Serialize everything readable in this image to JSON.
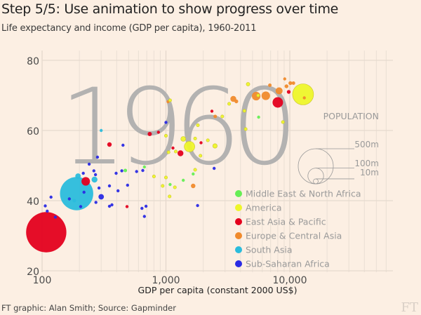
{
  "header": {
    "title": "Step 5/5: Use animation to show progress over time",
    "subtitle": "Life expectancy and income (GDP per capita), 1960-2011"
  },
  "footer": {
    "source": "FT graphic: Alan Smith; Source: Gapminder",
    "logo": "FT"
  },
  "chart_data": {
    "type": "scatter",
    "subtype": "bubble",
    "title": "Life expectancy and income (GDP per capita), 1960-2011",
    "year_label": "1960",
    "xlabel": "GDP per capita (constant 2000 US$)",
    "ylabel": "Life expectancy",
    "xscale": "log",
    "xlim": [
      100,
      60000
    ],
    "ylim": [
      20,
      83
    ],
    "xticks": [
      {
        "value": 100,
        "label": "100"
      },
      {
        "value": 1000,
        "label": "1,000"
      },
      {
        "value": 10000,
        "label": "10,000"
      }
    ],
    "yticks": [
      {
        "value": 20,
        "label": "20"
      },
      {
        "value": 40,
        "label": "40"
      },
      {
        "value": 60,
        "label": "60"
      },
      {
        "value": 80,
        "label": "80"
      }
    ],
    "grid": true,
    "legend_position": "bottom-right",
    "size_legend": {
      "title": "POPULATION",
      "entries": [
        {
          "label": "500m",
          "value": 500
        },
        {
          "label": "100m",
          "value": 100
        },
        {
          "label": "10m",
          "value": 10
        }
      ]
    },
    "regions": [
      {
        "key": "mena",
        "name": "Middle East & North Africa",
        "color": "#66ee55"
      },
      {
        "key": "america",
        "name": "America",
        "color": "#eef62a"
      },
      {
        "key": "eap",
        "name": "East Asia & Pacific",
        "color": "#e4001d"
      },
      {
        "key": "eca",
        "name": "Europe & Central Asia",
        "color": "#f08a2c"
      },
      {
        "key": "sa",
        "name": "South Asia",
        "color": "#2bbcdc"
      },
      {
        "key": "ssa",
        "name": "Sub-Saharan Africa",
        "color": "#2a2ae4"
      }
    ],
    "points": [
      {
        "region": "eap",
        "gdp": 108,
        "life": 31,
        "pop": 660
      },
      {
        "region": "sa",
        "gdp": 190,
        "life": 42,
        "pop": 450
      },
      {
        "region": "sa",
        "gdp": 195,
        "life": 47,
        "pop": 12
      },
      {
        "region": "sa",
        "gdp": 265,
        "life": 46,
        "pop": 14
      },
      {
        "region": "sa",
        "gdp": 182,
        "life": 40,
        "pop": 5
      },
      {
        "region": "sa",
        "gdp": 300,
        "life": 60,
        "pop": 4
      },
      {
        "region": "eap",
        "gdp": 225,
        "life": 45.5,
        "pop": 30
      },
      {
        "region": "eap",
        "gdp": 350,
        "life": 56,
        "pop": 8
      },
      {
        "region": "eap",
        "gdp": 740,
        "life": 59,
        "pop": 7
      },
      {
        "region": "eap",
        "gdp": 870,
        "life": 59.5,
        "pop": 4
      },
      {
        "region": "eap",
        "gdp": 1310,
        "life": 53.5,
        "pop": 14
      },
      {
        "region": "eap",
        "gdp": 1140,
        "life": 55,
        "pop": 1.5
      },
      {
        "region": "eap",
        "gdp": 1920,
        "life": 56.5,
        "pop": 0.8
      },
      {
        "region": "eap",
        "gdp": 2350,
        "life": 65.5,
        "pop": 1
      },
      {
        "region": "eap",
        "gdp": 485,
        "life": 38.3,
        "pop": 0.8
      },
      {
        "region": "eap",
        "gdp": 8000,
        "life": 68,
        "pop": 45
      },
      {
        "region": "eap",
        "gdp": 9800,
        "life": 71,
        "pop": 6
      },
      {
        "region": "ssa",
        "gdp": 110,
        "life": 37,
        "pop": 2
      },
      {
        "region": "ssa",
        "gdp": 106,
        "life": 38.5,
        "pop": 1.3
      },
      {
        "region": "ssa",
        "gdp": 128,
        "life": 35.3,
        "pop": 1.8
      },
      {
        "region": "ssa",
        "gdp": 118,
        "life": 41,
        "pop": 1.3
      },
      {
        "region": "ssa",
        "gdp": 166,
        "life": 40.5,
        "pop": 0.8
      },
      {
        "region": "ssa",
        "gdp": 205,
        "life": 38.3,
        "pop": 1.8
      },
      {
        "region": "ssa",
        "gdp": 215,
        "life": 47.8,
        "pop": 1.4
      },
      {
        "region": "ssa",
        "gdp": 218,
        "life": 42.4,
        "pop": 1.4
      },
      {
        "region": "ssa",
        "gdp": 240,
        "life": 50.4,
        "pop": 0.8
      },
      {
        "region": "ssa",
        "gdp": 262,
        "life": 48.5,
        "pop": 2
      },
      {
        "region": "ssa",
        "gdp": 280,
        "life": 52.4,
        "pop": 2.5
      },
      {
        "region": "ssa",
        "gdp": 270,
        "life": 47.4,
        "pop": 2.4
      },
      {
        "region": "ssa",
        "gdp": 288,
        "life": 43.6,
        "pop": 3
      },
      {
        "region": "ssa",
        "gdp": 300,
        "life": 41.1,
        "pop": 12
      },
      {
        "region": "ssa",
        "gdp": 272,
        "life": 39.5,
        "pop": 1.4
      },
      {
        "region": "ssa",
        "gdp": 350,
        "life": 38.4,
        "pop": 1.6
      },
      {
        "region": "ssa",
        "gdp": 350,
        "life": 44.2,
        "pop": 2.4
      },
      {
        "region": "ssa",
        "gdp": 366,
        "life": 38.8,
        "pop": 1.4
      },
      {
        "region": "ssa",
        "gdp": 396,
        "life": 47.8,
        "pop": 1.3
      },
      {
        "region": "ssa",
        "gdp": 410,
        "life": 42.8,
        "pop": 1.6
      },
      {
        "region": "ssa",
        "gdp": 440,
        "life": 48.5,
        "pop": 1.6
      },
      {
        "region": "ssa",
        "gdp": 490,
        "life": 44.4,
        "pop": 1.8
      },
      {
        "region": "ssa",
        "gdp": 580,
        "life": 48.3,
        "pop": 1.6
      },
      {
        "region": "ssa",
        "gdp": 650,
        "life": 48.6,
        "pop": 1.2
      },
      {
        "region": "ssa",
        "gdp": 450,
        "life": 55.8,
        "pop": 1.6
      },
      {
        "region": "ssa",
        "gdp": 640,
        "life": 37.8,
        "pop": 1.4
      },
      {
        "region": "ssa",
        "gdp": 690,
        "life": 38.4,
        "pop": 1.4
      },
      {
        "region": "ssa",
        "gdp": 670,
        "life": 35.5,
        "pop": 0.9
      },
      {
        "region": "ssa",
        "gdp": 1000,
        "life": 62.3,
        "pop": 0.6
      },
      {
        "region": "ssa",
        "gdp": 1800,
        "life": 38.6,
        "pop": 0.6
      },
      {
        "region": "ssa",
        "gdp": 2450,
        "life": 49.2,
        "pop": 4
      },
      {
        "region": "mena",
        "gdp": 470,
        "life": 48.6,
        "pop": 5
      },
      {
        "region": "mena",
        "gdp": 670,
        "life": 49.6,
        "pop": 3.6
      },
      {
        "region": "mena",
        "gdp": 1380,
        "life": 45.8,
        "pop": 3.6
      },
      {
        "region": "mena",
        "gdp": 1660,
        "life": 47.6,
        "pop": 3
      },
      {
        "region": "mena",
        "gdp": 1080,
        "life": 44.6,
        "pop": 0.8
      },
      {
        "region": "mena",
        "gdp": 5600,
        "life": 63.8,
        "pop": 0.9
      },
      {
        "region": "america",
        "gdp": 1080,
        "life": 68.6,
        "pop": 0.7
      },
      {
        "region": "america",
        "gdp": 1720,
        "life": 57.7,
        "pop": 2
      },
      {
        "region": "america",
        "gdp": 1810,
        "life": 61.5,
        "pop": 1.6
      },
      {
        "region": "america",
        "gdp": 1380,
        "life": 57.6,
        "pop": 10
      },
      {
        "region": "america",
        "gdp": 1550,
        "life": 55.4,
        "pop": 45
      },
      {
        "region": "america",
        "gdp": 2180,
        "life": 57.2,
        "pop": 4
      },
      {
        "region": "america",
        "gdp": 2490,
        "life": 55.6,
        "pop": 8
      },
      {
        "region": "america",
        "gdp": 1900,
        "life": 52.8,
        "pop": 1.4
      },
      {
        "region": "america",
        "gdp": 1720,
        "life": 48.8,
        "pop": 3
      },
      {
        "region": "america",
        "gdp": 1050,
        "life": 53.8,
        "pop": 2
      },
      {
        "region": "america",
        "gdp": 1200,
        "life": 54,
        "pop": 1.5
      },
      {
        "region": "america",
        "gdp": 1000,
        "life": 58.5,
        "pop": 0.8
      },
      {
        "region": "america",
        "gdp": 800,
        "life": 46.9,
        "pop": 1.3
      },
      {
        "region": "america",
        "gdp": 1000,
        "life": 46.6,
        "pop": 1.6
      },
      {
        "region": "america",
        "gdp": 940,
        "life": 44.2,
        "pop": 1.5
      },
      {
        "region": "america",
        "gdp": 1070,
        "life": 41.2,
        "pop": 1.2
      },
      {
        "region": "america",
        "gdp": 1180,
        "life": 43.8,
        "pop": 1
      },
      {
        "region": "america",
        "gdp": 2850,
        "life": 64,
        "pop": 2.4
      },
      {
        "region": "america",
        "gdp": 3240,
        "life": 67.6,
        "pop": 0.9
      },
      {
        "region": "america",
        "gdp": 4300,
        "life": 65.6,
        "pop": 3
      },
      {
        "region": "america",
        "gdp": 4400,
        "life": 60.4,
        "pop": 1.9
      },
      {
        "region": "america",
        "gdp": 5550,
        "life": 70,
        "pop": 2.7
      },
      {
        "region": "america",
        "gdp": 4600,
        "life": 73.2,
        "pop": 5.5
      },
      {
        "region": "america",
        "gdp": 8800,
        "life": 62.4,
        "pop": 0.4
      },
      {
        "region": "america",
        "gdp": 12800,
        "life": 70.3,
        "pop": 180
      },
      {
        "region": "eca",
        "gdp": 1040,
        "life": 68.2,
        "pop": 4
      },
      {
        "region": "eca",
        "gdp": 2500,
        "life": 64,
        "pop": 5
      },
      {
        "region": "eca",
        "gdp": 1660,
        "life": 44.2,
        "pop": 8
      },
      {
        "region": "eca",
        "gdp": 3500,
        "life": 69,
        "pop": 14
      },
      {
        "region": "eca",
        "gdp": 3700,
        "life": 68.3,
        "pop": 6
      },
      {
        "region": "eca",
        "gdp": 5350,
        "life": 69.8,
        "pop": 30
      },
      {
        "region": "eca",
        "gdp": 6400,
        "life": 69.9,
        "pop": 30
      },
      {
        "region": "eca",
        "gdp": 6900,
        "life": 72.9,
        "pop": 5
      },
      {
        "region": "eca",
        "gdp": 8200,
        "life": 71.3,
        "pop": 20
      },
      {
        "region": "eca",
        "gdp": 9400,
        "life": 72.6,
        "pop": 6
      },
      {
        "region": "eca",
        "gdp": 9100,
        "life": 74.7,
        "pop": 4
      },
      {
        "region": "eca",
        "gdp": 10100,
        "life": 73.5,
        "pop": 6
      },
      {
        "region": "eca",
        "gdp": 10700,
        "life": 73.5,
        "pop": 5
      },
      {
        "region": "eca",
        "gdp": 13100,
        "life": 69.3,
        "pop": 0.4
      }
    ]
  }
}
